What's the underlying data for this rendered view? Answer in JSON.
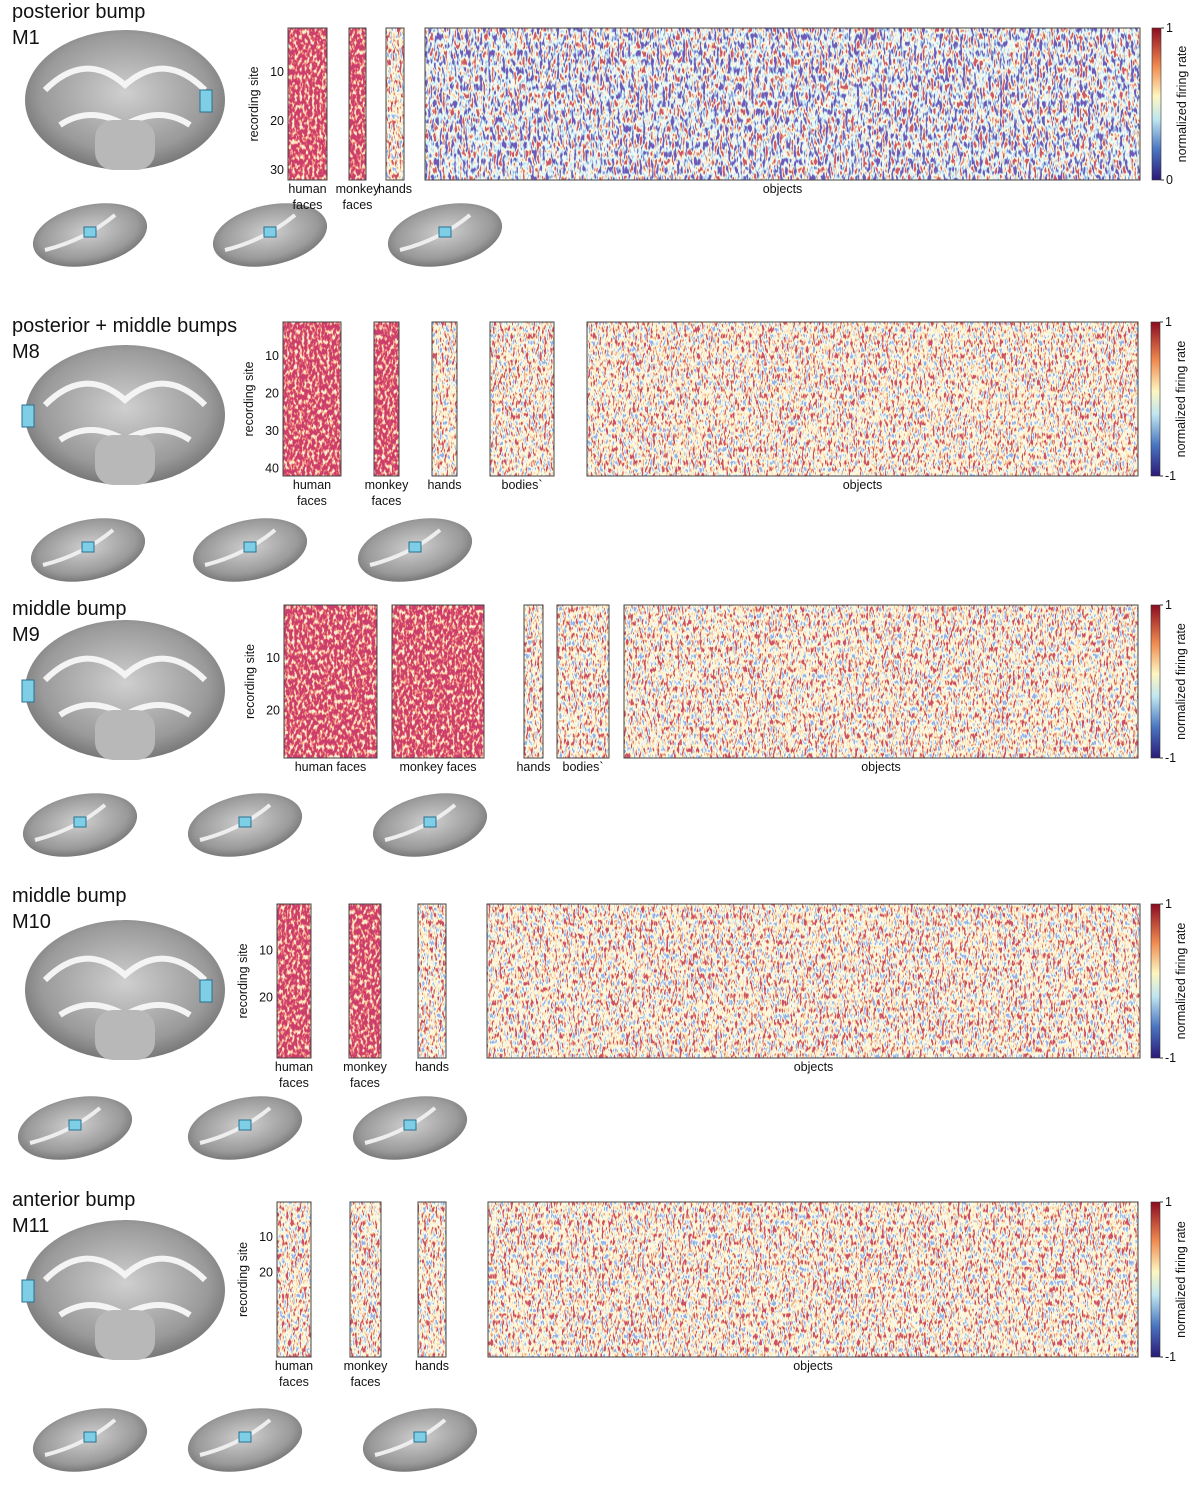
{
  "panels": [
    {
      "title": "posterior bump",
      "monkey": "M1",
      "y_label": "recording site",
      "ylim": [
        1,
        32
      ],
      "yticks": [
        10,
        20,
        30
      ],
      "groups": [
        "human faces",
        "monkey faces",
        "hands",
        "objects"
      ],
      "colorbar": {
        "label": "normalized firing rate",
        "ticks": [
          0,
          1
        ]
      }
    },
    {
      "title": "posterior + middle bumps",
      "monkey": "M8",
      "y_label": "recording site",
      "ylim": [
        1,
        42
      ],
      "yticks": [
        10,
        20,
        30,
        40
      ],
      "groups": [
        "human faces",
        "monkey faces",
        "hands",
        "bodies`",
        "objects"
      ],
      "colorbar": {
        "label": "normalized firing rate",
        "ticks": [
          -1,
          1
        ]
      }
    },
    {
      "title": "middle bump",
      "monkey": "M9",
      "y_label": "recording site",
      "ylim": [
        0,
        29
      ],
      "yticks": [
        10,
        20
      ],
      "groups": [
        "human faces",
        "monkey faces",
        "hands",
        "bodies`",
        "objects"
      ],
      "colorbar": {
        "label": "normalized firing rate",
        "ticks": [
          -1,
          1
        ]
      }
    },
    {
      "title": "middle bump",
      "monkey": "M10",
      "y_label": "recording site",
      "ylim": [
        0,
        33
      ],
      "yticks": [
        10,
        20
      ],
      "groups": [
        "human faces",
        "monkey faces",
        "hands",
        "objects"
      ],
      "colorbar": {
        "label": "normalized firing rate",
        "ticks": [
          -1,
          1
        ]
      }
    },
    {
      "title": "anterior bump",
      "monkey": "M11",
      "y_label": "recording site",
      "ylim": [
        0,
        44
      ],
      "yticks": [
        10,
        20
      ],
      "groups": [
        "human faces",
        "monkey faces",
        "hands",
        "objects"
      ],
      "colorbar": {
        "label": "normalized firing rate",
        "ticks": [
          -1,
          1
        ]
      }
    }
  ]
}
